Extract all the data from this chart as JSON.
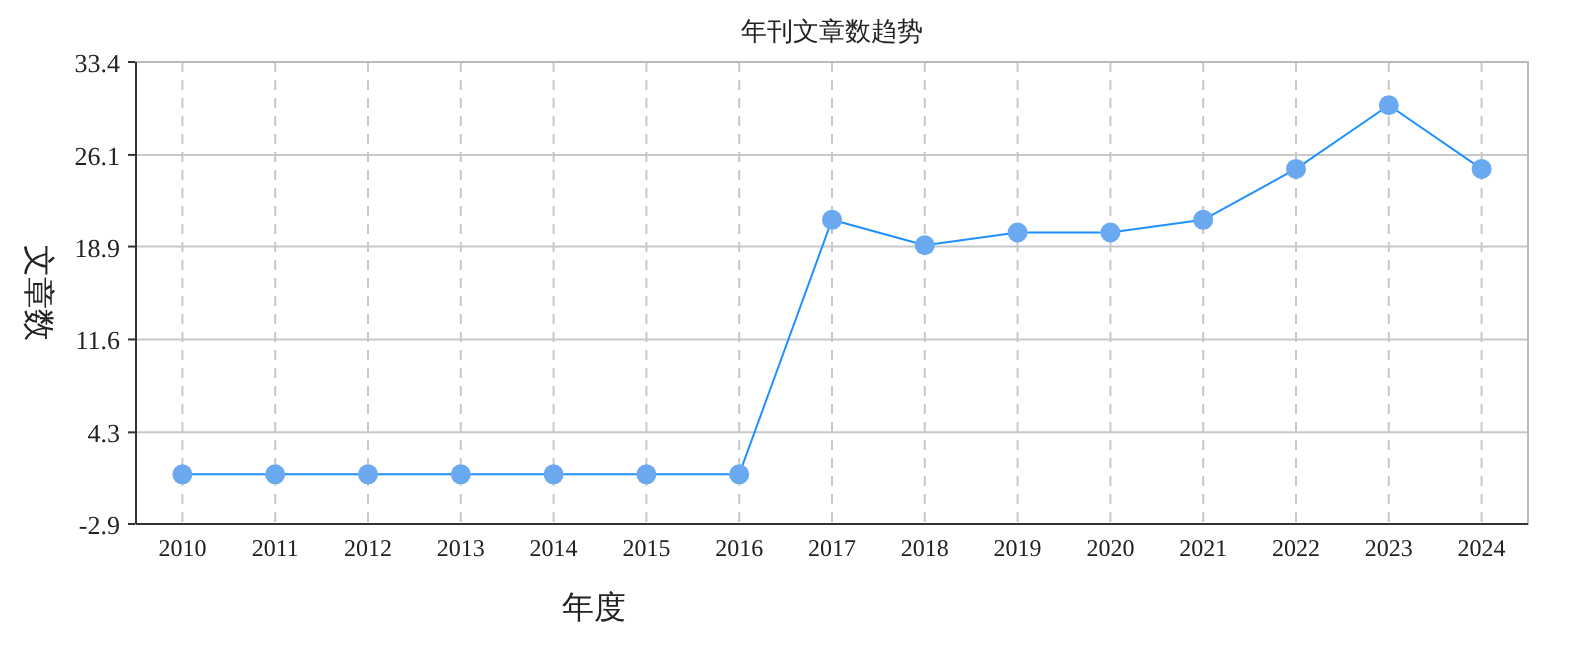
{
  "chart_data": {
    "type": "line",
    "title": "年刊文章数趋势",
    "xlabel": "年度",
    "ylabel": "文章数",
    "categories": [
      "2010",
      "2011",
      "2012",
      "2013",
      "2014",
      "2015",
      "2016",
      "2017",
      "2018",
      "2019",
      "2020",
      "2021",
      "2022",
      "2023",
      "2024"
    ],
    "series": [
      {
        "color": "#1e90ff",
        "values": [
          1,
          1,
          1,
          1,
          1,
          1,
          1,
          21,
          19,
          20,
          20,
          21,
          25,
          30,
          25
        ]
      }
    ],
    "ylim": [
      -2.9,
      33.4
    ],
    "yticks": [
      -2.9,
      4.3,
      11.6,
      18.9,
      26.1,
      33.4
    ],
    "grid": true,
    "marker": "circle",
    "line_style": "solid"
  }
}
